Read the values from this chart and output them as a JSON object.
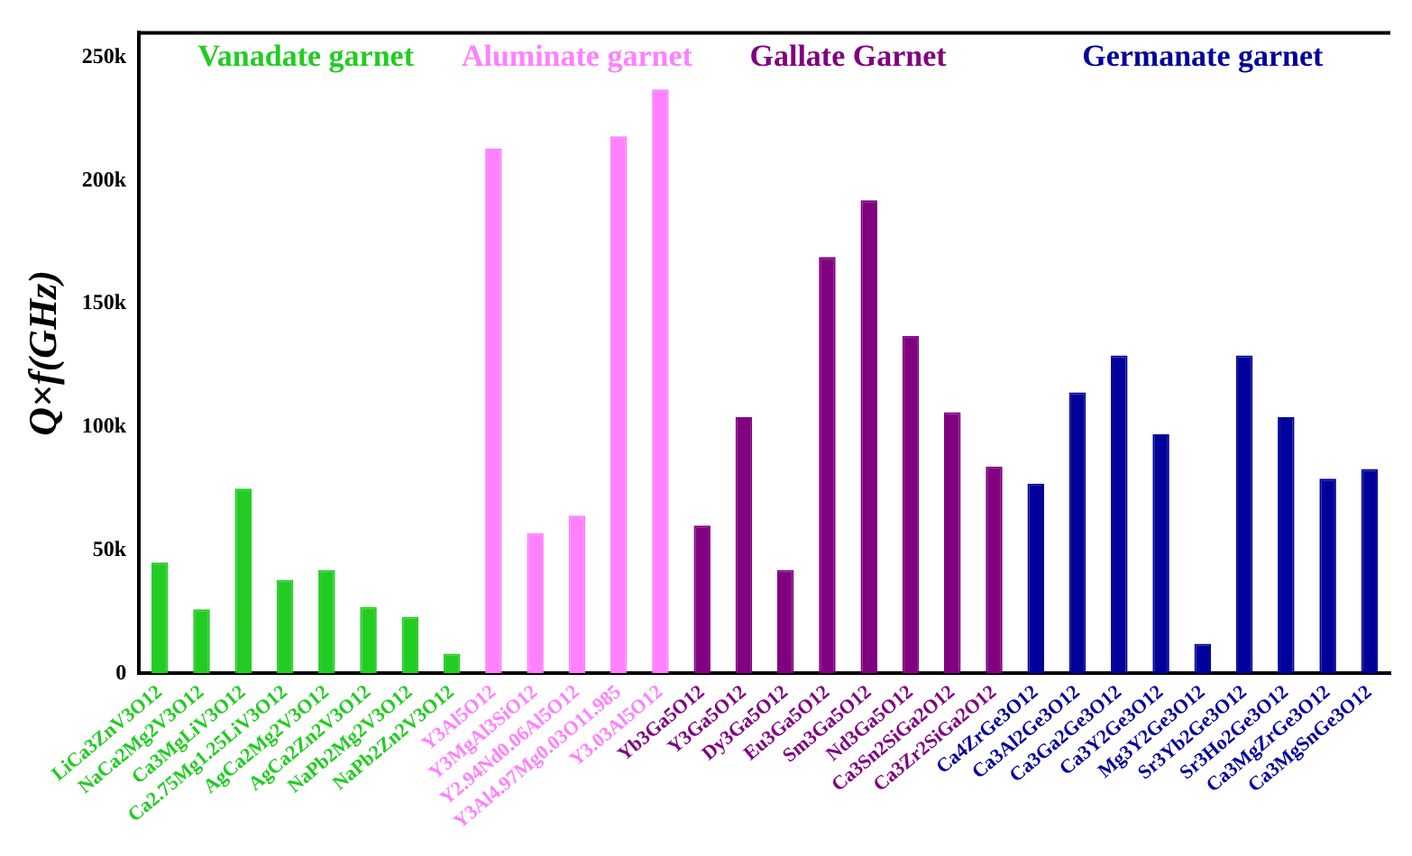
{
  "chart_data": {
    "type": "bar",
    "ylabel": "Q×f(GHz)",
    "stacked": true,
    "grid": false,
    "legend": false,
    "categories": [
      "LiCa3ZnV3O12",
      "NaCa2Mg2V3O12",
      "Ca3MgLiV3O12",
      "Ca2.75Mg1.25LiV3O12",
      "AgCa2Mg2V3O12",
      "AgCa2Zn2V3O12",
      "NaPb2Mg2V3O12",
      "NaPb2Zn2V3O12",
      "Y3Al5O12",
      "Y3MgAl3SiO12",
      "Y2.94Nd0.06Al5O12",
      "Y3Al4.97Mg0.03O11.985",
      "Y3.03Al5O12",
      "Yb3Ga5O12",
      "Y3Ga5O12",
      "Dy3Ga5O12",
      "Eu3Ga5O12",
      "Sm3Ga5O12",
      "Nd3Ga5O12",
      "Ca3Sn2SiGa2O12",
      "Ca3Zr2SiGa2O12",
      "Ca4ZrGe3O12",
      "Ca3Al2Ge3O12",
      "Ca3Ga2Ge3O12",
      "Ca3Y2Ge3O12",
      "Mg3Y2Ge3O12",
      "Sr3Yb2Ge3O12",
      "Sr3Ho2Ge3O12",
      "Ca3MgZrGe3O12",
      "Ca3MgSnGe3O12"
    ],
    "series": [
      {
        "name": "Vanadate garnet",
        "color": "#22cc22",
        "values": [
          45000,
          26000,
          75000,
          38000,
          42000,
          27000,
          23000,
          8000,
          null,
          null,
          null,
          null,
          null,
          null,
          null,
          null,
          null,
          null,
          null,
          null,
          null,
          null,
          null,
          null,
          null,
          null,
          null,
          null,
          null,
          null
        ]
      },
      {
        "name": "Aluminate garnet",
        "color": "#ff80ff",
        "values": [
          null,
          null,
          null,
          null,
          null,
          null,
          null,
          null,
          213000,
          57000,
          64000,
          218000,
          237000,
          null,
          null,
          null,
          null,
          null,
          null,
          null,
          null,
          null,
          null,
          null,
          null,
          null,
          null,
          null,
          null,
          null
        ]
      },
      {
        "name": "Gallate Garnet",
        "color": "#800080",
        "values": [
          null,
          null,
          null,
          null,
          null,
          null,
          null,
          null,
          null,
          null,
          null,
          null,
          null,
          60000,
          104000,
          42000,
          169000,
          192000,
          137000,
          106000,
          84000,
          null,
          null,
          null,
          null,
          null,
          null,
          null,
          null,
          null
        ]
      },
      {
        "name": "Germanate garnet",
        "color": "#00009a",
        "values": [
          null,
          null,
          null,
          null,
          null,
          null,
          null,
          null,
          null,
          null,
          null,
          null,
          null,
          null,
          null,
          null,
          null,
          null,
          null,
          null,
          null,
          77000,
          114000,
          129000,
          97000,
          12000,
          129000,
          104000,
          79000,
          83000
        ]
      }
    ],
    "ylim": [
      0,
      260000
    ],
    "yticks": [
      {
        "value": 0,
        "label": "0"
      },
      {
        "value": 50000,
        "label": "50k"
      },
      {
        "value": 100000,
        "label": "100k"
      },
      {
        "value": 150000,
        "label": "150k"
      },
      {
        "value": 200000,
        "label": "200k"
      },
      {
        "value": 250000,
        "label": "250k"
      }
    ]
  }
}
